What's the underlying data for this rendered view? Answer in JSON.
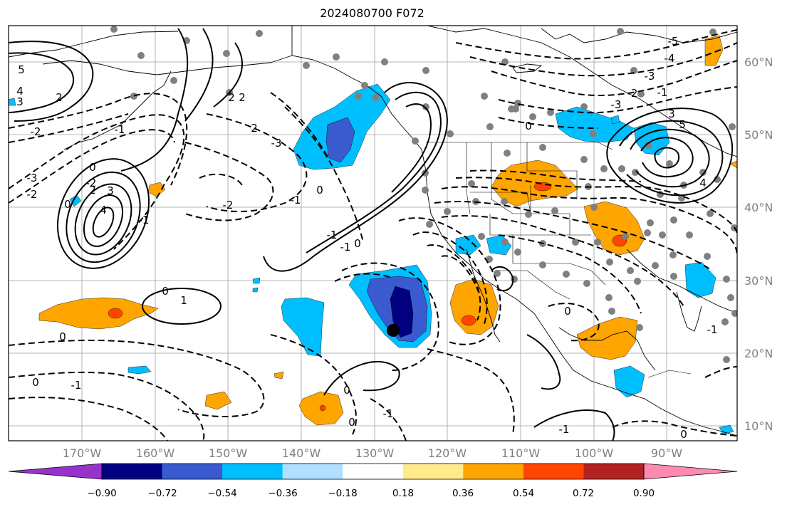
{
  "title": "2024080700 F072",
  "lon_labels": [
    "170°W",
    "160°W",
    "150°W",
    "140°W",
    "130°W",
    "120°W",
    "110°W",
    "100°W",
    "90°W"
  ],
  "lat_labels": [
    "60°N",
    "50°N",
    "40°N",
    "30°N",
    "20°N",
    "10°N"
  ],
  "colorbar": {
    "colors": [
      "#9932cc",
      "#000080",
      "#3a5bcf",
      "#00bfff",
      "#b0e0ff",
      "#ffffff",
      "#ffeb8a",
      "#ffa500",
      "#ff4500",
      "#b22222",
      "#ff8aaf"
    ],
    "tick_labels": [
      "−0.90",
      "−0.72",
      "−0.54",
      "−0.36",
      "−0.18",
      "0.18",
      "0.36",
      "0.54",
      "0.72",
      "0.90"
    ]
  },
  "contour_labels": [
    "5",
    "4",
    "3",
    "2",
    "2",
    "2",
    "-2",
    "-2",
    "2",
    "-3",
    "-1",
    "0",
    "-3",
    "-2",
    "-1",
    "0",
    "2",
    "3",
    "4",
    "-1",
    "-2",
    "-1",
    "0",
    "-1",
    "0",
    "1",
    "0",
    "0",
    "-1",
    "0",
    "-1",
    "0",
    "0",
    "-5",
    "-4",
    "-3",
    "-2",
    "-1",
    "0",
    "5",
    "4",
    "-3",
    "3",
    "0",
    "-1",
    "0",
    "-1"
  ]
}
